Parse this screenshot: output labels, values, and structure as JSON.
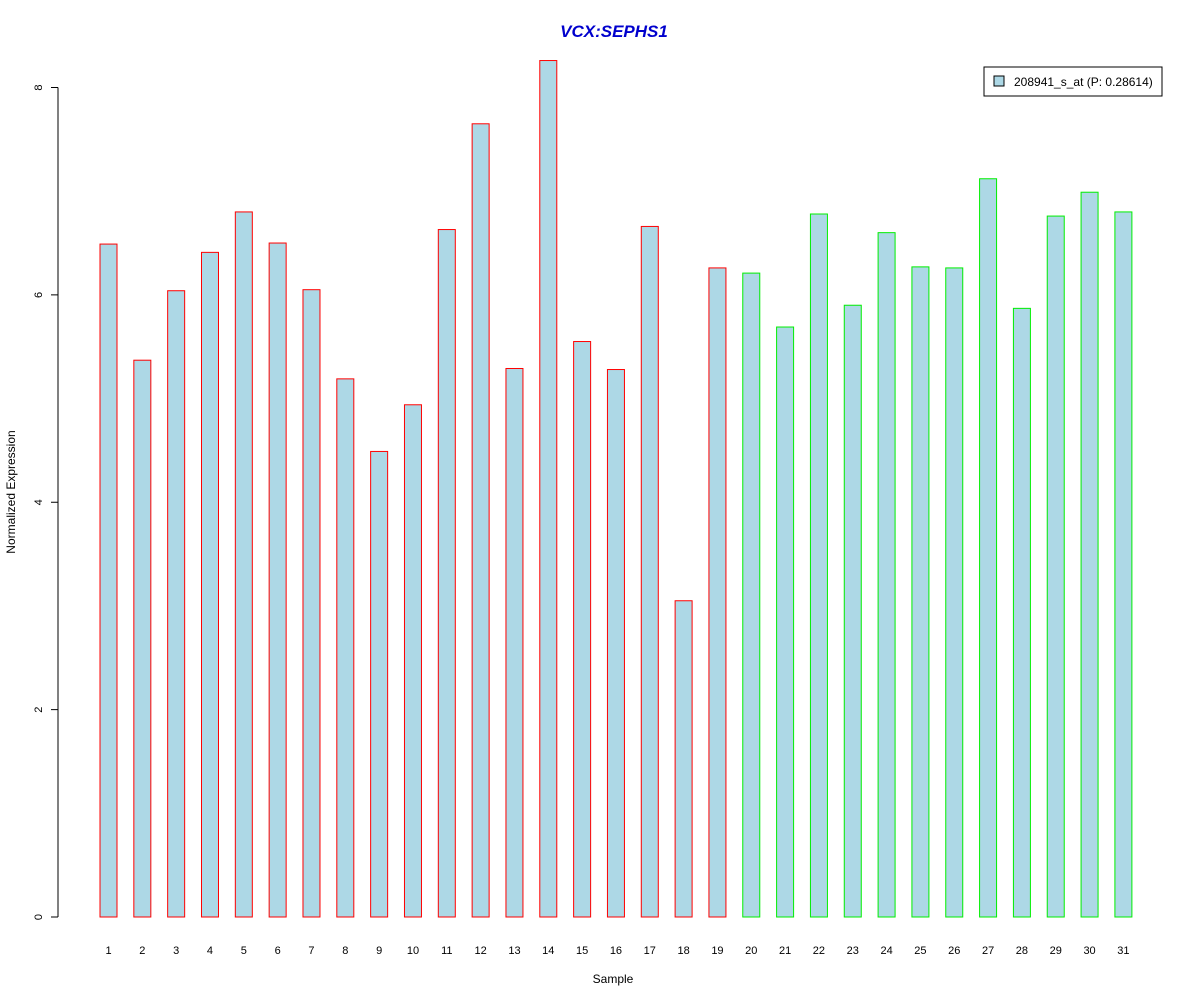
{
  "chart_data": {
    "type": "bar",
    "title": "VCX:SEPHS1",
    "xlabel": "Sample",
    "ylabel": "Normalized Expression",
    "ylim": [
      0,
      8.3
    ],
    "yticks": [
      0,
      2,
      4,
      6,
      8
    ],
    "grid": false,
    "categories": [
      "1",
      "2",
      "3",
      "4",
      "5",
      "6",
      "7",
      "8",
      "9",
      "10",
      "11",
      "12",
      "13",
      "14",
      "15",
      "16",
      "17",
      "18",
      "19",
      "20",
      "21",
      "22",
      "23",
      "24",
      "25",
      "26",
      "27",
      "28",
      "29",
      "30",
      "31"
    ],
    "series": [
      {
        "name": "208941_s_at (P: 0.28614)",
        "values": [
          6.49,
          5.37,
          6.04,
          6.41,
          6.8,
          6.5,
          6.05,
          5.19,
          4.49,
          4.94,
          6.63,
          7.65,
          5.29,
          8.26,
          5.55,
          5.28,
          6.66,
          3.05,
          6.26,
          6.21,
          5.69,
          6.78,
          5.9,
          6.6,
          6.27,
          6.26,
          7.12,
          5.87,
          6.76,
          6.99,
          6.8
        ]
      }
    ],
    "group_colors": [
      "#ff0000",
      "#ff0000",
      "#ff0000",
      "#ff0000",
      "#ff0000",
      "#ff0000",
      "#ff0000",
      "#ff0000",
      "#ff0000",
      "#ff0000",
      "#ff0000",
      "#ff0000",
      "#ff0000",
      "#ff0000",
      "#ff0000",
      "#ff0000",
      "#ff0000",
      "#ff0000",
      "#ff0000",
      "#00ee00",
      "#00ee00",
      "#00ee00",
      "#00ee00",
      "#00ee00",
      "#00ee00",
      "#00ee00",
      "#00ee00",
      "#00ee00",
      "#00ee00",
      "#00ee00",
      "#00ee00"
    ],
    "bar_fill": "#add8e6",
    "title_color": "#0000cd",
    "legend_position": "top-right"
  }
}
